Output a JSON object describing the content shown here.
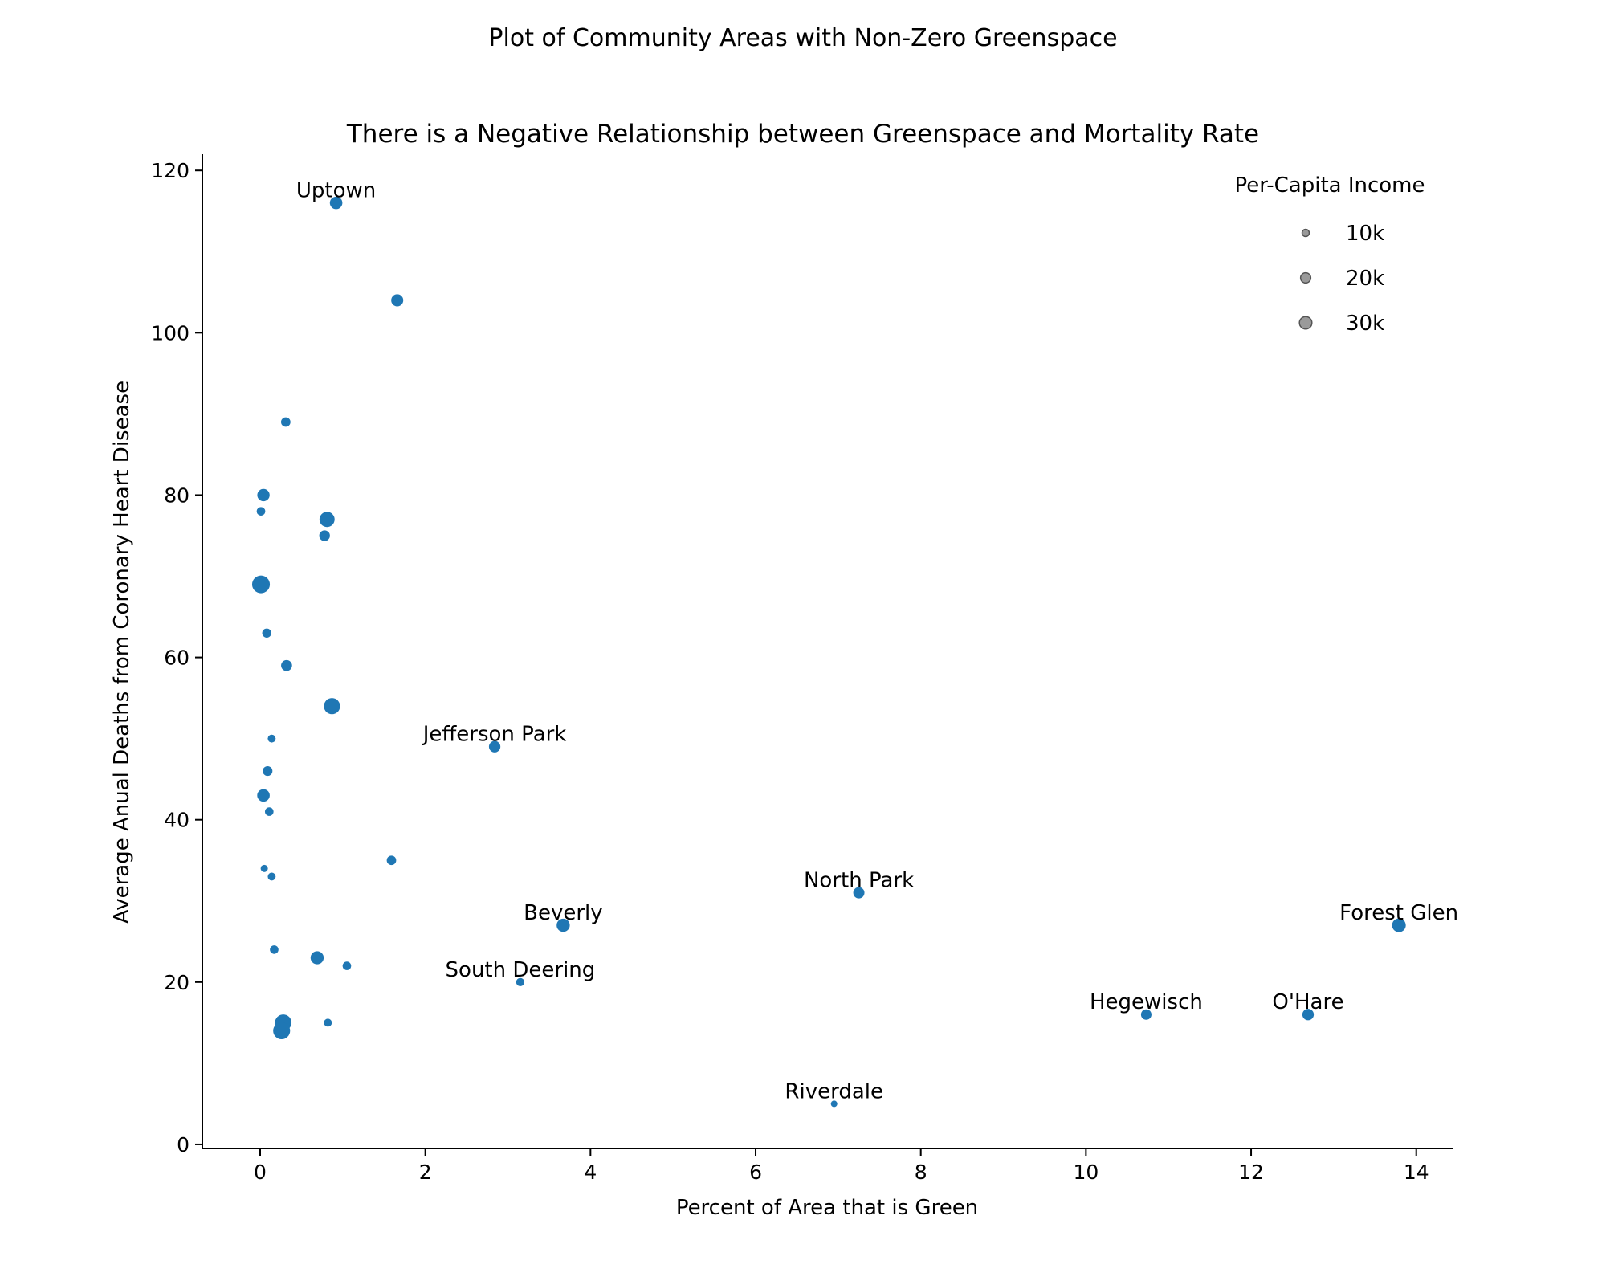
{
  "chart_data": {
    "type": "scatter",
    "suptitle": "Plot of Community Areas with Non-Zero Greenspace",
    "title": "There is a Negative Relationship between Greenspace and Mortality Rate",
    "xlabel": "Percent of Area that is Green",
    "ylabel": "Average Anual Deaths from Coronary Heart Disease",
    "xlim": [
      -0.7,
      14.45
    ],
    "ylim": [
      -0.5,
      122
    ],
    "xticks": [
      0,
      2,
      4,
      6,
      8,
      10,
      12,
      14
    ],
    "yticks": [
      0,
      20,
      40,
      60,
      80,
      100,
      120
    ],
    "grid": false,
    "color": "#1f77b4",
    "size_encoding": "Per-Capita Income",
    "legend": {
      "title": "Per-Capita Income",
      "placement": "top-right",
      "entries": [
        {
          "label": "10k",
          "income": 10000
        },
        {
          "label": "20k",
          "income": 20000
        },
        {
          "label": "30k",
          "income": 30000
        }
      ]
    },
    "points": [
      {
        "x": 0.92,
        "y": 116,
        "income": 30000,
        "label": "Uptown"
      },
      {
        "x": 1.66,
        "y": 104,
        "income": 28000,
        "label": ""
      },
      {
        "x": 0.31,
        "y": 89,
        "income": 17000,
        "label": ""
      },
      {
        "x": 0.04,
        "y": 80,
        "income": 29000,
        "label": ""
      },
      {
        "x": 0.01,
        "y": 78,
        "income": 14000,
        "label": ""
      },
      {
        "x": 0.81,
        "y": 77,
        "income": 44000,
        "label": ""
      },
      {
        "x": 0.78,
        "y": 75,
        "income": 22000,
        "label": ""
      },
      {
        "x": 0.01,
        "y": 69,
        "income": 60000,
        "label": ""
      },
      {
        "x": 0.08,
        "y": 63,
        "income": 16000,
        "label": ""
      },
      {
        "x": 0.32,
        "y": 59,
        "income": 23000,
        "label": ""
      },
      {
        "x": 0.87,
        "y": 54,
        "income": 50000,
        "label": ""
      },
      {
        "x": 2.84,
        "y": 49,
        "income": 25000,
        "label": "Jefferson Park"
      },
      {
        "x": 0.14,
        "y": 50,
        "income": 12000,
        "label": ""
      },
      {
        "x": 0.09,
        "y": 46,
        "income": 18000,
        "label": ""
      },
      {
        "x": 0.04,
        "y": 43,
        "income": 30000,
        "label": ""
      },
      {
        "x": 0.11,
        "y": 41,
        "income": 14000,
        "label": ""
      },
      {
        "x": 1.59,
        "y": 35,
        "income": 17000,
        "label": ""
      },
      {
        "x": 0.05,
        "y": 34,
        "income": 10000,
        "label": ""
      },
      {
        "x": 0.14,
        "y": 33,
        "income": 12000,
        "label": ""
      },
      {
        "x": 7.25,
        "y": 31,
        "income": 24000,
        "label": "North Park"
      },
      {
        "x": 3.67,
        "y": 27,
        "income": 33000,
        "label": "Beverly"
      },
      {
        "x": 13.79,
        "y": 27,
        "income": 36000,
        "label": "Forest Glen"
      },
      {
        "x": 0.17,
        "y": 24,
        "income": 14000,
        "label": ""
      },
      {
        "x": 0.69,
        "y": 23,
        "income": 33000,
        "label": ""
      },
      {
        "x": 1.05,
        "y": 22,
        "income": 14000,
        "label": ""
      },
      {
        "x": 3.15,
        "y": 20,
        "income": 13000,
        "label": "South Deering"
      },
      {
        "x": 10.73,
        "y": 16,
        "income": 21000,
        "label": "Hegewisch"
      },
      {
        "x": 12.69,
        "y": 16,
        "income": 25000,
        "label": "O'Hare"
      },
      {
        "x": 0.28,
        "y": 15,
        "income": 52000,
        "label": ""
      },
      {
        "x": 0.26,
        "y": 14,
        "income": 55000,
        "label": ""
      },
      {
        "x": 0.82,
        "y": 15,
        "income": 12000,
        "label": ""
      },
      {
        "x": 6.95,
        "y": 5,
        "income": 8000,
        "label": "Riverdale"
      }
    ]
  }
}
